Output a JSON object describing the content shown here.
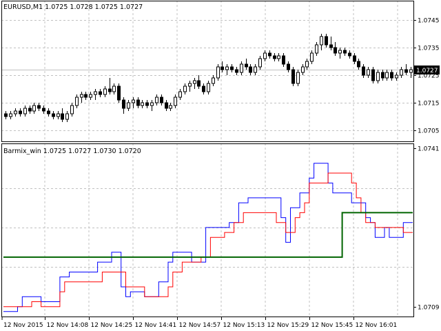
{
  "colors": {
    "background": "#ffffff",
    "grid": "#c0c0c0",
    "bull_body": "#ffffff",
    "bear_body": "#000000",
    "candle_outline": "#000000",
    "ask_line": "#c0c0c0",
    "price_box_bg": "#000000",
    "price_box_fg": "#ffffff",
    "line_blue": "#0000ff",
    "line_red": "#ff0000",
    "line_green": "#006400"
  },
  "chart_data": [
    {
      "type": "candlestick",
      "title": "EURUSD,M1  1.0725 1.0728 1.0725 1.0727",
      "ylim": [
        1.0701,
        1.0752
      ],
      "yticks": [
        "1.0745",
        "1.0735",
        "1.0725",
        "1.0715",
        "1.0705"
      ],
      "current_price": "1.0727",
      "grid": true,
      "candles": [
        [
          1.0711,
          1.0712,
          1.0709,
          1.071
        ],
        [
          1.071,
          1.0712,
          1.0709,
          1.0711
        ],
        [
          1.0711,
          1.0713,
          1.071,
          1.0712
        ],
        [
          1.0712,
          1.0713,
          1.071,
          1.0711
        ],
        [
          1.0711,
          1.0714,
          1.071,
          1.0713
        ],
        [
          1.0713,
          1.0714,
          1.0711,
          1.0712
        ],
        [
          1.0712,
          1.0715,
          1.0711,
          1.0714
        ],
        [
          1.0714,
          1.0715,
          1.0712,
          1.0713
        ],
        [
          1.0713,
          1.0714,
          1.0711,
          1.0712
        ],
        [
          1.0712,
          1.0713,
          1.071,
          1.0711
        ],
        [
          1.0711,
          1.0712,
          1.0709,
          1.071
        ],
        [
          1.071,
          1.0712,
          1.0709,
          1.0711
        ],
        [
          1.0711,
          1.0713,
          1.0708,
          1.0709
        ],
        [
          1.0709,
          1.0712,
          1.0708,
          1.0711
        ],
        [
          1.0711,
          1.0715,
          1.071,
          1.0714
        ],
        [
          1.0714,
          1.0718,
          1.0713,
          1.0717
        ],
        [
          1.0717,
          1.0719,
          1.0715,
          1.0718
        ],
        [
          1.0718,
          1.0719,
          1.0716,
          1.0717
        ],
        [
          1.0717,
          1.0719,
          1.0716,
          1.0718
        ],
        [
          1.0718,
          1.072,
          1.0716,
          1.0719
        ],
        [
          1.0719,
          1.072,
          1.0717,
          1.0718
        ],
        [
          1.0718,
          1.0721,
          1.0717,
          1.072
        ],
        [
          1.072,
          1.0724,
          1.0718,
          1.0719
        ],
        [
          1.0719,
          1.0722,
          1.0718,
          1.0721
        ],
        [
          1.0721,
          1.0722,
          1.0715,
          1.0716
        ],
        [
          1.0716,
          1.0717,
          1.0711,
          1.0713
        ],
        [
          1.0713,
          1.0716,
          1.0712,
          1.0715
        ],
        [
          1.0715,
          1.0717,
          1.0713,
          1.0716
        ],
        [
          1.0716,
          1.0717,
          1.0713,
          1.0714
        ],
        [
          1.0714,
          1.0716,
          1.0713,
          1.0715
        ],
        [
          1.0715,
          1.0716,
          1.0713,
          1.0714
        ],
        [
          1.0714,
          1.0716,
          1.0712,
          1.0715
        ],
        [
          1.0715,
          1.0718,
          1.0714,
          1.0717
        ],
        [
          1.0717,
          1.0718,
          1.0714,
          1.0715
        ],
        [
          1.0715,
          1.0716,
          1.0712,
          1.0713
        ],
        [
          1.0713,
          1.0715,
          1.0712,
          1.0714
        ],
        [
          1.0714,
          1.0718,
          1.0713,
          1.0717
        ],
        [
          1.0717,
          1.072,
          1.0716,
          1.0719
        ],
        [
          1.0719,
          1.0722,
          1.0718,
          1.0721
        ],
        [
          1.0721,
          1.0723,
          1.0719,
          1.0722
        ],
        [
          1.0722,
          1.0724,
          1.072,
          1.0723
        ],
        [
          1.0723,
          1.0725,
          1.072,
          1.0721
        ],
        [
          1.0721,
          1.0722,
          1.0718,
          1.0719
        ],
        [
          1.0719,
          1.0723,
          1.0718,
          1.0722
        ],
        [
          1.0722,
          1.0725,
          1.0721,
          1.0724
        ],
        [
          1.0724,
          1.0729,
          1.0723,
          1.0728
        ],
        [
          1.0728,
          1.073,
          1.0726,
          1.0727
        ],
        [
          1.0727,
          1.0729,
          1.0725,
          1.0728
        ],
        [
          1.0728,
          1.0729,
          1.0726,
          1.0727
        ],
        [
          1.0727,
          1.0728,
          1.0725,
          1.0726
        ],
        [
          1.0726,
          1.073,
          1.0725,
          1.0729
        ],
        [
          1.0729,
          1.0731,
          1.0727,
          1.0728
        ],
        [
          1.0728,
          1.0729,
          1.0725,
          1.0726
        ],
        [
          1.0726,
          1.0729,
          1.0725,
          1.0728
        ],
        [
          1.0728,
          1.0732,
          1.0727,
          1.0731
        ],
        [
          1.0731,
          1.0734,
          1.073,
          1.0733
        ],
        [
          1.0733,
          1.0734,
          1.0731,
          1.0732
        ],
        [
          1.0732,
          1.0733,
          1.073,
          1.0731
        ],
        [
          1.0731,
          1.0733,
          1.073,
          1.0732
        ],
        [
          1.0732,
          1.0733,
          1.0728,
          1.0729
        ],
        [
          1.0729,
          1.073,
          1.0726,
          1.0727
        ],
        [
          1.0727,
          1.0728,
          1.0721,
          1.0722
        ],
        [
          1.0722,
          1.0727,
          1.0721,
          1.0726
        ],
        [
          1.0726,
          1.0729,
          1.0725,
          1.0728
        ],
        [
          1.0728,
          1.0731,
          1.0727,
          1.073
        ],
        [
          1.073,
          1.0734,
          1.0729,
          1.0733
        ],
        [
          1.0733,
          1.0737,
          1.0732,
          1.0736
        ],
        [
          1.0736,
          1.074,
          1.0734,
          1.0739
        ],
        [
          1.0739,
          1.074,
          1.0735,
          1.0736
        ],
        [
          1.0736,
          1.0739,
          1.0734,
          1.0735
        ],
        [
          1.0735,
          1.0737,
          1.0732,
          1.0733
        ],
        [
          1.0733,
          1.0735,
          1.0731,
          1.0734
        ],
        [
          1.0734,
          1.0735,
          1.0732,
          1.0733
        ],
        [
          1.0733,
          1.0734,
          1.0731,
          1.0732
        ],
        [
          1.0732,
          1.0733,
          1.0729,
          1.073
        ],
        [
          1.073,
          1.0731,
          1.0727,
          1.0728
        ],
        [
          1.0728,
          1.0729,
          1.0724,
          1.0725
        ],
        [
          1.0725,
          1.0728,
          1.0724,
          1.0727
        ],
        [
          1.0727,
          1.0728,
          1.0722,
          1.0723
        ],
        [
          1.0723,
          1.0727,
          1.0722,
          1.0726
        ],
        [
          1.0726,
          1.0727,
          1.0723,
          1.0724
        ],
        [
          1.0724,
          1.0727,
          1.0723,
          1.0726
        ],
        [
          1.0726,
          1.0727,
          1.0723,
          1.0724
        ],
        [
          1.0724,
          1.0726,
          1.0723,
          1.0725
        ],
        [
          1.0725,
          1.0728,
          1.0724,
          1.0727
        ],
        [
          1.0727,
          1.0729,
          1.0725,
          1.0726
        ],
        [
          1.0726,
          1.0728,
          1.0724,
          1.0727
        ]
      ]
    },
    {
      "type": "line",
      "title": "Barmix_win 1.0725 1.0727 1.0730 1.0720",
      "ylim": [
        1.0707,
        1.0742
      ],
      "yticks": [
        "1.0741",
        "1.0709"
      ],
      "grid": true,
      "series": [
        {
          "color": "#0000ff",
          "values": [
            1.0708,
            1.0708,
            1.0708,
            1.0709,
            1.0711,
            1.0711,
            1.0711,
            1.0711,
            1.071,
            1.071,
            1.071,
            1.071,
            1.0715,
            1.0715,
            1.0716,
            1.0716,
            1.0716,
            1.0716,
            1.0716,
            1.0716,
            1.0718,
            1.0718,
            1.0718,
            1.072,
            1.072,
            1.0713,
            1.0711,
            1.0712,
            1.0712,
            1.0712,
            1.0711,
            1.0711,
            1.0711,
            1.0714,
            1.0714,
            1.0718,
            1.072,
            1.072,
            1.072,
            1.072,
            1.0718,
            1.0718,
            1.0718,
            1.0725,
            1.0725,
            1.0725,
            1.0725,
            1.0725,
            1.0726,
            1.0726,
            1.073,
            1.073,
            1.0731,
            1.0731,
            1.0731,
            1.0731,
            1.0731,
            1.0731,
            1.0731,
            1.0727,
            1.0722,
            1.0729,
            1.0729,
            1.0732,
            1.0732,
            1.0735,
            1.0738,
            1.0738,
            1.0738,
            1.0734,
            1.0732,
            1.0732,
            1.0732,
            1.0732,
            1.073,
            1.073,
            1.073,
            1.0727,
            1.0726,
            1.0723,
            1.0723,
            1.0725,
            1.0723,
            1.0723,
            1.0723,
            1.0726,
            1.0726
          ]
        },
        {
          "color": "#ff0000",
          "values": [
            1.0709,
            1.0709,
            1.0709,
            1.0709,
            1.0709,
            1.0709,
            1.071,
            1.071,
            1.0709,
            1.0709,
            1.0709,
            1.0709,
            1.0712,
            1.0714,
            1.0714,
            1.0714,
            1.0714,
            1.0714,
            1.0714,
            1.0714,
            1.0714,
            1.0716,
            1.0716,
            1.0716,
            1.0716,
            1.0716,
            1.0713,
            1.0713,
            1.0713,
            1.0713,
            1.0711,
            1.0711,
            1.0711,
            1.0711,
            1.0711,
            1.0713,
            1.0716,
            1.0716,
            1.0718,
            1.0718,
            1.0718,
            1.0718,
            1.0719,
            1.0719,
            1.0723,
            1.0723,
            1.0723,
            1.0724,
            1.0724,
            1.0726,
            1.0726,
            1.0728,
            1.0728,
            1.0728,
            1.0728,
            1.0728,
            1.0728,
            1.0728,
            1.0726,
            1.0726,
            1.0724,
            1.0724,
            1.0727,
            1.0728,
            1.073,
            1.0734,
            1.0734,
            1.0734,
            1.0734,
            1.0736,
            1.0736,
            1.0736,
            1.0736,
            1.0736,
            1.0734,
            1.0731,
            1.0728,
            1.0726,
            1.0726,
            1.0725,
            1.0725,
            1.0725,
            1.0725,
            1.0725,
            1.0725,
            1.0724,
            1.0724
          ]
        },
        {
          "color": "#006400",
          "values": [
            1.0719,
            1.0719,
            1.0719,
            1.0719,
            1.0719,
            1.0719,
            1.0719,
            1.0719,
            1.0719,
            1.0719,
            1.0719,
            1.0719,
            1.0719,
            1.0719,
            1.0719,
            1.0719,
            1.0719,
            1.0719,
            1.0719,
            1.0719,
            1.0719,
            1.0719,
            1.0719,
            1.0719,
            1.0719,
            1.0719,
            1.0719,
            1.0719,
            1.0719,
            1.0719,
            1.0719,
            1.0719,
            1.0719,
            1.0719,
            1.0719,
            1.0719,
            1.0719,
            1.0719,
            1.0719,
            1.0719,
            1.0719,
            1.0719,
            1.0719,
            1.0719,
            1.0719,
            1.0719,
            1.0719,
            1.0719,
            1.0719,
            1.0719,
            1.0719,
            1.0719,
            1.0719,
            1.0719,
            1.0719,
            1.0719,
            1.0719,
            1.0719,
            1.0719,
            1.0719,
            1.0719,
            1.0719,
            1.0719,
            1.0719,
            1.0719,
            1.0719,
            1.0719,
            1.0719,
            1.0719,
            1.0719,
            1.0719,
            1.0719,
            1.0728,
            1.0728,
            1.0728,
            1.0728,
            1.0728,
            1.0728,
            1.0728,
            1.0728,
            1.0728,
            1.0728,
            1.0728,
            1.0728,
            1.0728,
            1.0728,
            1.0728
          ]
        }
      ]
    }
  ],
  "x_axis": {
    "labels": [
      "12 Nov 2015",
      "12 Nov 14:08",
      "12 Nov 14:25",
      "12 Nov 14:41",
      "12 Nov 14:57",
      "12 Nov 15:13",
      "12 Nov 15:29",
      "12 Nov 15:45",
      "12 Nov 16:01"
    ]
  }
}
